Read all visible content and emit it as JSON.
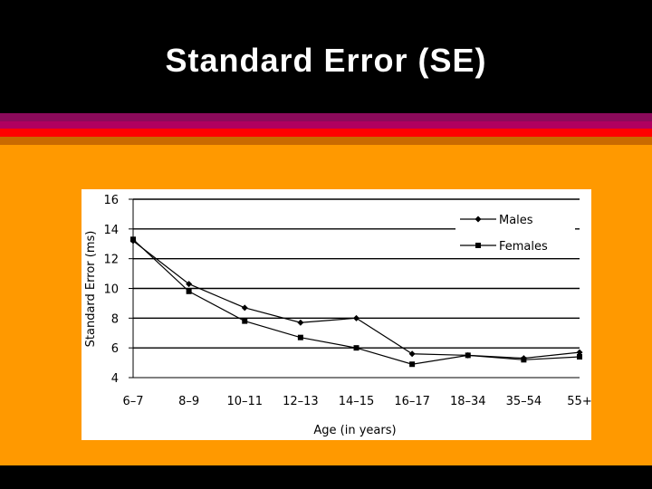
{
  "slide": {
    "title": "Standard Error (SE)"
  },
  "colors": {
    "background": "#000000",
    "content_bg": "#ff9900",
    "stripe_colors": [
      "#8b0a5a",
      "#b0005f",
      "#ff0000",
      "#c96a00"
    ],
    "chart_bg": "#ffffff",
    "series": "#000000"
  },
  "chart_data": {
    "type": "line",
    "title": "",
    "xlabel": "Age (in years)",
    "ylabel": "Standard Error (ms)",
    "categories": [
      "6–7",
      "8–9",
      "10–11",
      "12–13",
      "14–15",
      "16–17",
      "18–34",
      "35–54",
      "55+"
    ],
    "ylim": [
      4,
      16
    ],
    "yticks": [
      4,
      6,
      8,
      10,
      12,
      14,
      16
    ],
    "grid": true,
    "legend_position": "top-right",
    "series": [
      {
        "name": "Males",
        "marker": "diamond",
        "values": [
          13.2,
          10.3,
          8.7,
          7.7,
          8.0,
          5.6,
          5.5,
          5.3,
          5.7
        ]
      },
      {
        "name": "Females",
        "marker": "square",
        "values": [
          13.3,
          9.8,
          7.8,
          6.7,
          6.0,
          4.9,
          5.5,
          5.2,
          5.4
        ]
      }
    ]
  }
}
